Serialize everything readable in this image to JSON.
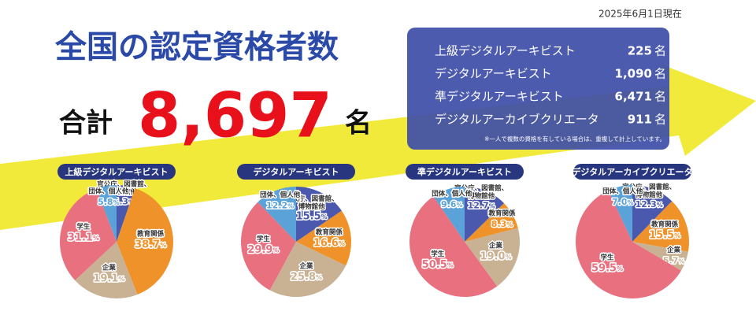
{
  "date": "2025年6月1日現在",
  "title": "全国の認定資格者数",
  "total": {
    "label": "合計",
    "value": "8,697",
    "unit": "名"
  },
  "table": {
    "rows": [
      {
        "name": "上級デジタルアーキビスト",
        "count": "225",
        "unit": "名"
      },
      {
        "name": "デジタルアーキビスト",
        "count": "1,090",
        "unit": "名"
      },
      {
        "name": "準デジタルアーキビスト",
        "count": "6,471",
        "unit": "名"
      },
      {
        "name": "デジタルアーカイブクリエータ",
        "count": "911",
        "unit": "名"
      }
    ],
    "note": "※一人で複数の資格を有している場合は、重複して計上しています。"
  },
  "chart_data": [
    {
      "type": "pie",
      "title": "上級デジタルアーキビスト",
      "categories": [
        "官公庁、図書館、博物館他",
        "教育関係",
        "企業",
        "学生",
        "団体、個人他"
      ],
      "values": [
        5.3,
        38.7,
        19.1,
        31.1,
        5.8
      ],
      "value_labels": [
        "5.3%",
        "38.7%",
        "19.1%",
        "31.1%",
        "5.8%"
      ],
      "colors": [
        "#4a58ad",
        "#f0922a",
        "#c9b193",
        "#e8707f",
        "#5aa2d8"
      ]
    },
    {
      "type": "pie",
      "title": "デジタルアーキビスト",
      "categories": [
        "官公庁、図書館、博物館他",
        "教育関係",
        "企業",
        "学生",
        "団体、個人他"
      ],
      "values": [
        15.5,
        16.6,
        25.8,
        29.9,
        12.2
      ],
      "value_labels": [
        "15.5%",
        "16.6%",
        "25.8%",
        "29.9%",
        "12.2%"
      ],
      "colors": [
        "#4a58ad",
        "#f0922a",
        "#c9b193",
        "#e8707f",
        "#5aa2d8"
      ]
    },
    {
      "type": "pie",
      "title": "準デジタルアーキビスト",
      "categories": [
        "官公庁、図書館、博物館他",
        "教育関係",
        "企業",
        "学生",
        "団体、個人他"
      ],
      "values": [
        12.7,
        8.3,
        19.0,
        50.5,
        9.6
      ],
      "value_labels": [
        "12.7%",
        "8.3%",
        "19.0%",
        "50.5%",
        "9.6%"
      ],
      "colors": [
        "#4a58ad",
        "#f0922a",
        "#c9b193",
        "#e8707f",
        "#5aa2d8"
      ]
    },
    {
      "type": "pie",
      "title": "デジタルアーカイブクリエータ",
      "categories": [
        "官公庁、図書館、博物館他",
        "教育関係",
        "企業",
        "学生",
        "団体、個人他"
      ],
      "values": [
        12.3,
        15.5,
        5.7,
        59.5,
        7.0
      ],
      "value_labels": [
        "12.3%",
        "15.5%",
        "5.7%",
        "59.5%",
        "7.0%"
      ],
      "colors": [
        "#4a58ad",
        "#f0922a",
        "#c9b193",
        "#e8707f",
        "#5aa2d8"
      ]
    }
  ]
}
